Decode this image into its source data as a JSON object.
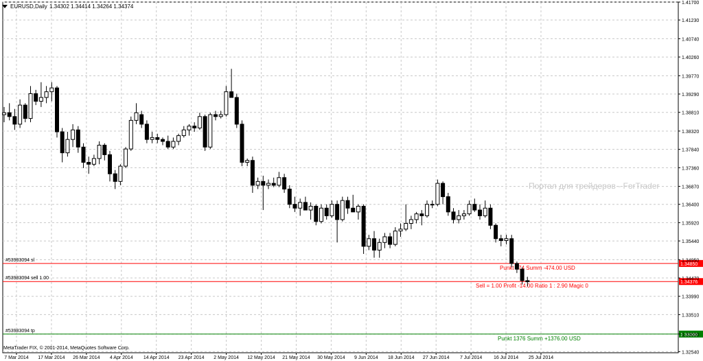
{
  "header": {
    "symbol": "EURUSD,Daily",
    "ohlc": "1.34302 1.34414 1.34264 1.34374",
    "arrow_icon": "triangle-down-icon"
  },
  "watermark": "Портал для трейдеров - ForTrader",
  "copyright": "MetaTrader FIX, © 2001-2014, MetaQuotes Software Corp.",
  "trade_lines": [
    {
      "label": "#53983094 sl",
      "price": 1.3485,
      "price_label": "1.34850",
      "color": "#ff0000",
      "annotation": "Punkt 474 Summ -474.00 USD"
    },
    {
      "label": "#53983094 sell 1.00",
      "price": 1.34376,
      "price_label": "1.34376",
      "color": "#ff0000",
      "annotation": "Sell = 1.00 Profit -14.00 Ratio 1 : 2.90 Magic 0"
    },
    {
      "label": "#53983094 tp",
      "price": 1.33,
      "price_label": "1.33000",
      "color": "#008000",
      "annotation": "Punkt 1376 Summ +1376.00 USD"
    }
  ],
  "chart_data": {
    "type": "candlestick",
    "ylim": [
      1.3251,
      1.417
    ],
    "y_ticks": [
      "1.41700",
      "1.41230",
      "1.40740",
      "1.40260",
      "1.39770",
      "1.39290",
      "1.38810",
      "1.38320",
      "1.37840",
      "1.37360",
      "1.36870",
      "1.36400",
      "1.35920",
      "1.35440",
      "1.34950",
      "1.34470",
      "1.33990",
      "1.33510",
      "1.33000",
      "1.32540"
    ],
    "x_ticks": [
      "7 Mar 2014",
      "17 Mar 2014",
      "26 Mar 2014",
      "4 Apr 2014",
      "14 Apr 2014",
      "23 Apr 2014",
      "2 May 2014",
      "12 May 2014",
      "21 May 2014",
      "30 May 2014",
      "9 Jun 2014",
      "18 Jun 2014",
      "27 Jun 2014",
      "7 Jul 2014",
      "16 Jul 2014",
      "25 Jul 2014"
    ],
    "candles": [
      [
        1.3875,
        1.3895,
        1.3855,
        1.388
      ],
      [
        1.388,
        1.3905,
        1.386,
        1.387
      ],
      [
        1.387,
        1.389,
        1.3835,
        1.385
      ],
      [
        1.385,
        1.3915,
        1.384,
        1.39
      ],
      [
        1.39,
        1.3905,
        1.3855,
        1.3865
      ],
      [
        1.3865,
        1.395,
        1.3855,
        1.393
      ],
      [
        1.393,
        1.394,
        1.39,
        1.391
      ],
      [
        1.391,
        1.396,
        1.3895,
        1.392
      ],
      [
        1.392,
        1.395,
        1.3905,
        1.3935
      ],
      [
        1.3935,
        1.396,
        1.391,
        1.3945
      ],
      [
        1.3945,
        1.395,
        1.3815,
        1.383
      ],
      [
        1.383,
        1.384,
        1.375,
        1.3775
      ],
      [
        1.3775,
        1.383,
        1.3765,
        1.381
      ],
      [
        1.381,
        1.385,
        1.379,
        1.3835
      ],
      [
        1.3835,
        1.3845,
        1.3775,
        1.379
      ],
      [
        1.379,
        1.38,
        1.3735,
        1.375
      ],
      [
        1.375,
        1.3765,
        1.372,
        1.3745
      ],
      [
        1.3745,
        1.377,
        1.374,
        1.376
      ],
      [
        1.376,
        1.3805,
        1.3745,
        1.3795
      ],
      [
        1.3795,
        1.38,
        1.3755,
        1.377
      ],
      [
        1.377,
        1.378,
        1.37,
        1.372
      ],
      [
        1.372,
        1.373,
        1.368,
        1.37
      ],
      [
        1.37,
        1.3745,
        1.369,
        1.374
      ],
      [
        1.374,
        1.379,
        1.3735,
        1.3785
      ],
      [
        1.3785,
        1.387,
        1.378,
        1.386
      ],
      [
        1.386,
        1.3905,
        1.385,
        1.388
      ],
      [
        1.3875,
        1.3885,
        1.384,
        1.385
      ],
      [
        1.385,
        1.386,
        1.38,
        1.381
      ],
      [
        1.381,
        1.383,
        1.38,
        1.3815
      ],
      [
        1.3815,
        1.3825,
        1.38,
        1.381
      ],
      [
        1.381,
        1.3815,
        1.3795,
        1.3805
      ],
      [
        1.3805,
        1.382,
        1.3785,
        1.379
      ],
      [
        1.379,
        1.3815,
        1.3785,
        1.3805
      ],
      [
        1.3805,
        1.3825,
        1.3795,
        1.382
      ],
      [
        1.382,
        1.3845,
        1.3815,
        1.3835
      ],
      [
        1.3835,
        1.385,
        1.382,
        1.3845
      ],
      [
        1.3845,
        1.3855,
        1.383,
        1.384
      ],
      [
        1.384,
        1.388,
        1.3835,
        1.387
      ],
      [
        1.387,
        1.3875,
        1.378,
        1.379
      ],
      [
        1.379,
        1.388,
        1.3785,
        1.3875
      ],
      [
        1.3875,
        1.3885,
        1.386,
        1.387
      ],
      [
        1.387,
        1.3885,
        1.3865,
        1.3875
      ],
      [
        1.3875,
        1.395,
        1.387,
        1.3935
      ],
      [
        1.3935,
        1.3995,
        1.392,
        1.392
      ],
      [
        1.392,
        1.393,
        1.384,
        1.385
      ],
      [
        1.385,
        1.386,
        1.374,
        1.375
      ],
      [
        1.375,
        1.376,
        1.374,
        1.3755
      ],
      [
        1.3755,
        1.3765,
        1.367,
        1.369
      ],
      [
        1.369,
        1.371,
        1.368,
        1.37
      ],
      [
        1.37,
        1.3715,
        1.3625,
        1.369
      ],
      [
        1.369,
        1.3705,
        1.368,
        1.3695
      ],
      [
        1.3695,
        1.371,
        1.3685,
        1.369
      ],
      [
        1.369,
        1.3725,
        1.3685,
        1.371
      ],
      [
        1.371,
        1.372,
        1.367,
        1.368
      ],
      [
        1.368,
        1.369,
        1.363,
        1.364
      ],
      [
        1.364,
        1.366,
        1.362,
        1.363
      ],
      [
        1.363,
        1.3655,
        1.361,
        1.3645
      ],
      [
        1.3645,
        1.366,
        1.363,
        1.3625
      ],
      [
        1.3625,
        1.3645,
        1.36,
        1.3635
      ],
      [
        1.3635,
        1.364,
        1.3585,
        1.3595
      ],
      [
        1.3595,
        1.364,
        1.359,
        1.363
      ],
      [
        1.363,
        1.364,
        1.36,
        1.361
      ],
      [
        1.361,
        1.365,
        1.3605,
        1.364
      ],
      [
        1.364,
        1.365,
        1.354,
        1.36
      ],
      [
        1.36,
        1.366,
        1.3595,
        1.365
      ],
      [
        1.365,
        1.366,
        1.3615,
        1.363
      ],
      [
        1.363,
        1.3665,
        1.3625,
        1.362
      ],
      [
        1.362,
        1.364,
        1.36,
        1.3635
      ],
      [
        1.3635,
        1.364,
        1.351,
        1.353
      ],
      [
        1.353,
        1.356,
        1.352,
        1.355
      ],
      [
        1.355,
        1.357,
        1.35,
        1.352
      ],
      [
        1.352,
        1.355,
        1.35,
        1.354
      ],
      [
        1.354,
        1.3565,
        1.3525,
        1.3555
      ],
      [
        1.3555,
        1.3565,
        1.3525,
        1.3535
      ],
      [
        1.3535,
        1.358,
        1.353,
        1.357
      ],
      [
        1.357,
        1.359,
        1.3555,
        1.3575
      ],
      [
        1.3575,
        1.364,
        1.357,
        1.359
      ],
      [
        1.359,
        1.361,
        1.3575,
        1.36
      ],
      [
        1.36,
        1.362,
        1.359,
        1.3615
      ],
      [
        1.3615,
        1.3625,
        1.3585,
        1.361
      ],
      [
        1.361,
        1.365,
        1.3605,
        1.364
      ],
      [
        1.364,
        1.365,
        1.363,
        1.364
      ],
      [
        1.364,
        1.3705,
        1.3635,
        1.3695
      ],
      [
        1.3695,
        1.37,
        1.364,
        1.366
      ],
      [
        1.366,
        1.367,
        1.361,
        1.362
      ],
      [
        1.362,
        1.363,
        1.359,
        1.36
      ],
      [
        1.36,
        1.3625,
        1.359,
        1.361
      ],
      [
        1.361,
        1.3625,
        1.36,
        1.3615
      ],
      [
        1.3615,
        1.365,
        1.361,
        1.364
      ],
      [
        1.364,
        1.3655,
        1.362,
        1.3625
      ],
      [
        1.3625,
        1.364,
        1.36,
        1.361
      ],
      [
        1.361,
        1.365,
        1.3605,
        1.363
      ],
      [
        1.363,
        1.364,
        1.3575,
        1.3585
      ],
      [
        1.3585,
        1.359,
        1.354,
        1.355
      ],
      [
        1.355,
        1.356,
        1.353,
        1.3545
      ],
      [
        1.3545,
        1.356,
        1.3535,
        1.355
      ],
      [
        1.355,
        1.356,
        1.3475,
        1.3485
      ],
      [
        1.3485,
        1.349,
        1.346,
        1.347
      ],
      [
        1.347,
        1.3475,
        1.343,
        1.344
      ],
      [
        1.344,
        1.345,
        1.3425,
        1.3437
      ]
    ]
  }
}
